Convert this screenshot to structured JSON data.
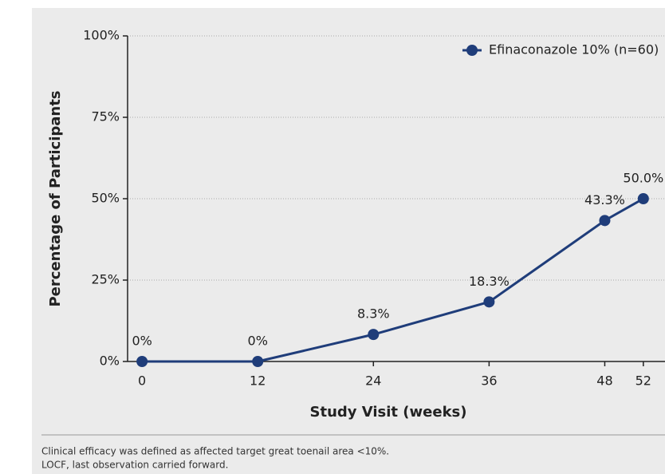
{
  "chart_data": {
    "type": "line",
    "x": [
      0,
      12,
      24,
      36,
      48,
      52
    ],
    "series": [
      {
        "name": "Efinaconazole 10% (n=60)",
        "color": "#1f3d7a",
        "values": [
          0,
          0,
          8.3,
          18.3,
          43.3,
          50.0
        ],
        "value_labels": [
          "0%",
          "0%",
          "8.3%",
          "18.3%",
          "43.3%",
          "50.0%"
        ]
      }
    ],
    "xlim": [
      -1.5,
      54
    ],
    "xticks": [
      0,
      12,
      24,
      36,
      48,
      52
    ],
    "ylim": [
      0,
      100
    ],
    "yticks": [
      {
        "value": 0,
        "label": "0%"
      },
      {
        "value": 25,
        "label": "25%"
      },
      {
        "value": 50,
        "label": "50%"
      },
      {
        "value": 75,
        "label": "75%"
      },
      {
        "value": 100,
        "label": "100%"
      }
    ],
    "grid": true,
    "legend": "top-right",
    "xlabel": "Study Visit (weeks)",
    "ylabel": "Percentage of Participants",
    "footnotes": [
      "Clinical efficacy was defined as affected target great toenail area <10%.",
      "LOCF, last observation carried forward."
    ]
  }
}
